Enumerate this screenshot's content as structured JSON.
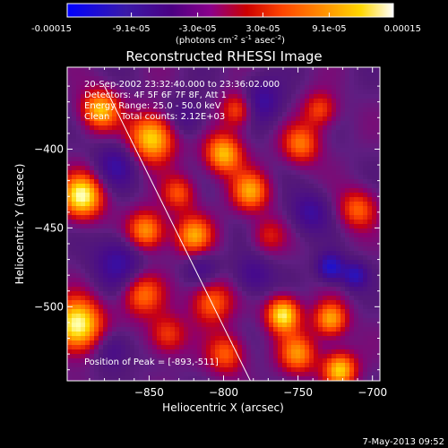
{
  "colorbar": {
    "tick_labels": [
      "-0.00015",
      "-9.1e-05",
      "-3.0e-05",
      "3.0e-05",
      "9.1e-05",
      "0.00015"
    ],
    "tick_values": [
      -0.00015,
      -9.1e-05,
      -3e-05,
      3e-05,
      9.1e-05,
      0.00015
    ],
    "units_prefix": "(photons cm",
    "units_exp1": "-2",
    "units_mid": " s",
    "units_exp2": "-1",
    "units_suffix": " asec",
    "units_exp3": "-2",
    "units_close": ")"
  },
  "chart_data": {
    "type": "heatmap",
    "title": "Reconstructed RHESSI Image",
    "xlabel": "Heliocentric X (arcsec)",
    "ylabel": "Heliocentric Y (arcsec)",
    "xlim": [
      -905,
      -695
    ],
    "ylim": [
      -547,
      -348
    ],
    "x_ticks": [
      {
        "value": -850,
        "label": "−850"
      },
      {
        "value": -800,
        "label": "−800"
      },
      {
        "value": -750,
        "label": "−750"
      },
      {
        "value": -700,
        "label": "−700"
      }
    ],
    "y_ticks": [
      {
        "value": -400,
        "label": "−400"
      },
      {
        "value": -450,
        "label": "−450"
      },
      {
        "value": -500,
        "label": "−500"
      }
    ],
    "colormap": [
      "#0000ff",
      "#4b0082",
      "#5a2d8a",
      "#8b008b",
      "#cc0000",
      "#ff4500",
      "#ff8c00",
      "#ffd700",
      "#ffff99",
      "#ffffff"
    ],
    "value_range": [
      -0.00015,
      0.00015
    ],
    "annotations": {
      "line1": "20-Sep-2002 23:32:40.000 to 23:36:02.000",
      "line2": "Detectors: 4F 5F 6F 7F 8F, Att 1",
      "line3": "Energy Range: 25.0 - 50.0 keV",
      "line4": "Clean    Total counts: 2.12E+03",
      "peak": "Position of Peak = [-893,-511]"
    },
    "peak_position": [
      -893,
      -511
    ],
    "limb_line": {
      "x": [
        -880,
        -782
      ],
      "y": [
        -360,
        -547
      ]
    },
    "blobs": [
      {
        "x": -895,
        "y": -430,
        "v": 1.0,
        "s": 10
      },
      {
        "x": -898,
        "y": -512,
        "v": 1.05,
        "s": 12
      },
      {
        "x": -883,
        "y": -375,
        "v": 0.8,
        "s": 9
      },
      {
        "x": -848,
        "y": -393,
        "v": 0.9,
        "s": 11
      },
      {
        "x": -800,
        "y": -403,
        "v": 0.8,
        "s": 9
      },
      {
        "x": -782,
        "y": -427,
        "v": 0.7,
        "s": 9
      },
      {
        "x": -852,
        "y": -452,
        "v": 0.75,
        "s": 9
      },
      {
        "x": -820,
        "y": -455,
        "v": 0.7,
        "s": 9
      },
      {
        "x": -855,
        "y": -492,
        "v": 0.6,
        "s": 10
      },
      {
        "x": -808,
        "y": -497,
        "v": 0.6,
        "s": 10
      },
      {
        "x": -760,
        "y": -505,
        "v": 0.95,
        "s": 8
      },
      {
        "x": -728,
        "y": -508,
        "v": 0.75,
        "s": 8
      },
      {
        "x": -798,
        "y": -530,
        "v": 0.55,
        "s": 9
      },
      {
        "x": -750,
        "y": -530,
        "v": 0.65,
        "s": 9
      },
      {
        "x": -722,
        "y": -540,
        "v": 0.85,
        "s": 8
      },
      {
        "x": -790,
        "y": -375,
        "v": 0.6,
        "s": 8
      },
      {
        "x": -748,
        "y": -397,
        "v": 0.6,
        "s": 9
      },
      {
        "x": -735,
        "y": -375,
        "v": 0.5,
        "s": 8
      },
      {
        "x": -710,
        "y": -438,
        "v": 0.55,
        "s": 9
      },
      {
        "x": -838,
        "y": -518,
        "v": 0.5,
        "s": 9
      },
      {
        "x": -830,
        "y": -428,
        "v": 0.5,
        "s": 8
      },
      {
        "x": -770,
        "y": -455,
        "v": 0.35,
        "s": 8
      },
      {
        "x": -775,
        "y": -370,
        "v": -0.45,
        "s": 10
      },
      {
        "x": -870,
        "y": -472,
        "v": -0.45,
        "s": 12
      },
      {
        "x": -872,
        "y": -410,
        "v": -0.4,
        "s": 10
      },
      {
        "x": -728,
        "y": -475,
        "v": -0.7,
        "s": 6
      },
      {
        "x": -712,
        "y": -480,
        "v": -0.55,
        "s": 6
      },
      {
        "x": -875,
        "y": -527,
        "v": -0.35,
        "s": 9
      },
      {
        "x": -780,
        "y": -480,
        "v": -0.35,
        "s": 9
      },
      {
        "x": -742,
        "y": -440,
        "v": -0.4,
        "s": 9
      },
      {
        "x": -815,
        "y": -475,
        "v": -0.3,
        "s": 8
      },
      {
        "x": -825,
        "y": -380,
        "v": -0.3,
        "s": 9
      }
    ]
  },
  "footer": {
    "date_stamp": "7-May-2013 09:52"
  }
}
